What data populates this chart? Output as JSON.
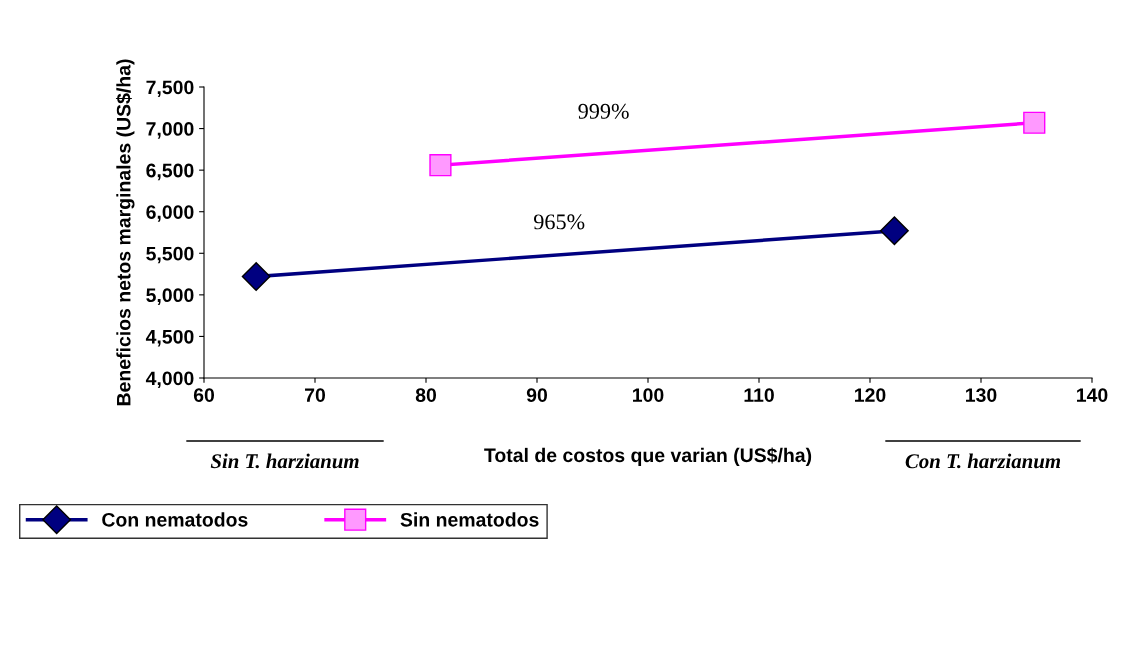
{
  "chart_data": {
    "type": "line",
    "xlabel": "Total de costos que varian (US$/ha)",
    "ylabel": "Beneficios netos marginales (US$/ha)",
    "series": [
      {
        "name": "Con nematodos",
        "color": "#000080",
        "marker": "diamond",
        "x": [
          64.7,
          122.2
        ],
        "values": [
          5220,
          5770
        ]
      },
      {
        "name": "Sin nematodos",
        "color": "#ff00ff",
        "marker": "square",
        "x": [
          81.3,
          134.8
        ],
        "values": [
          6560,
          7070
        ]
      }
    ],
    "xlim": [
      60,
      140
    ],
    "xticks": [
      60,
      70,
      80,
      90,
      100,
      110,
      120,
      130,
      140
    ],
    "ylim": [
      4000,
      7500
    ],
    "yticks": [
      {
        "value": 4000,
        "label": "4,000"
      },
      {
        "value": 4500,
        "label": "4,500"
      },
      {
        "value": 5000,
        "label": "5,000"
      },
      {
        "value": 5500,
        "label": "5,500"
      },
      {
        "value": 6000,
        "label": "6,000"
      },
      {
        "value": 6500,
        "label": "6,500"
      },
      {
        "value": 7000,
        "label": "7,000"
      },
      {
        "value": 7500,
        "label": "7,500"
      }
    ],
    "annotations": [
      "965%",
      "999%",
      "Sin T. harzianum",
      "Con T. harzianum"
    ],
    "legend": "bottom left",
    "grid": false
  }
}
